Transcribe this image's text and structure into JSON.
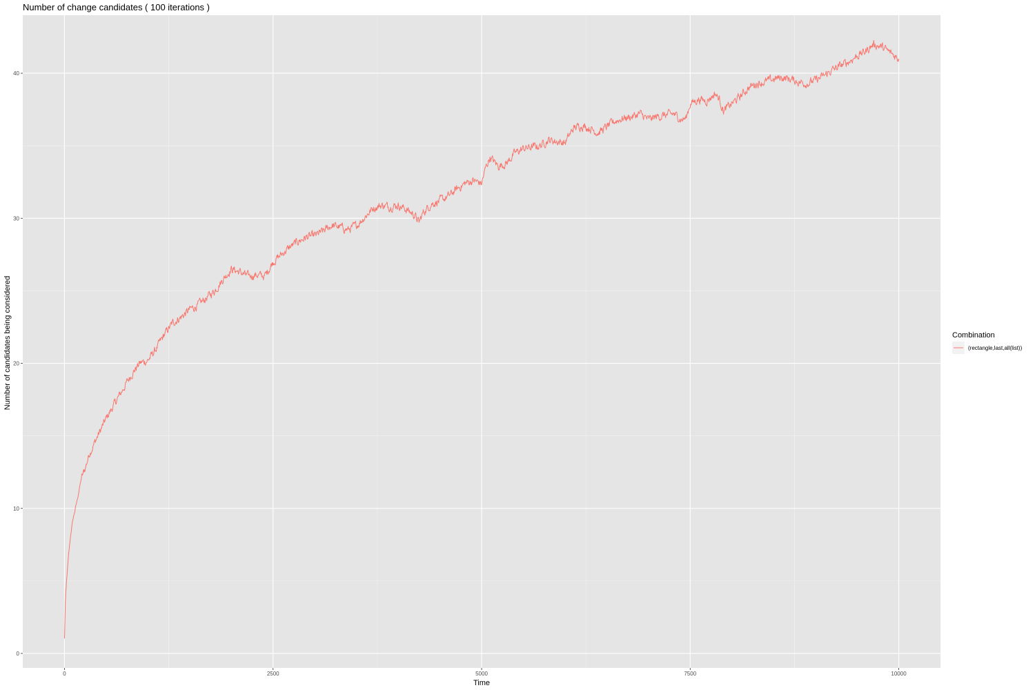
{
  "chart_data": {
    "type": "line",
    "title": "Number of change candidates ( 100 iterations )",
    "xlabel": "Time",
    "ylabel": "Number of candidates being considered",
    "xlim": [
      -500,
      10500
    ],
    "ylim": [
      -1,
      44
    ],
    "x_ticks": [
      0,
      2500,
      5000,
      7500,
      10000
    ],
    "x_tick_labels": [
      "0",
      "2500",
      "5000",
      "7500",
      "10000"
    ],
    "y_ticks": [
      0,
      10,
      20,
      30,
      40
    ],
    "y_tick_labels": [
      "0",
      "10",
      "20",
      "30",
      "40"
    ],
    "grid": true,
    "legend": {
      "title": "Combination",
      "position": "right"
    },
    "series": [
      {
        "name": "(rectangle,last,all(list))",
        "color": "#F8766D",
        "x": [
          0,
          10,
          25,
          50,
          75,
          100,
          150,
          200,
          250,
          300,
          400,
          500,
          600,
          700,
          800,
          900,
          1000,
          1100,
          1200,
          1300,
          1400,
          1500,
          1600,
          1700,
          1800,
          1900,
          2000,
          2100,
          2200,
          2300,
          2400,
          2500,
          2600,
          2700,
          2800,
          2900,
          3000,
          3100,
          3200,
          3300,
          3400,
          3500,
          3600,
          3700,
          3800,
          3900,
          4000,
          4100,
          4200,
          4250,
          4300,
          4400,
          4500,
          4600,
          4700,
          4800,
          4900,
          5000,
          5050,
          5100,
          5200,
          5300,
          5400,
          5500,
          5600,
          5700,
          5800,
          5900,
          6000,
          6100,
          6200,
          6300,
          6400,
          6500,
          6600,
          6700,
          6800,
          6900,
          7000,
          7100,
          7200,
          7300,
          7400,
          7450,
          7500,
          7600,
          7700,
          7800,
          7850,
          7900,
          8000,
          8100,
          8200,
          8300,
          8400,
          8500,
          8600,
          8700,
          8800,
          8900,
          9000,
          9100,
          9200,
          9300,
          9400,
          9500,
          9600,
          9700,
          9800,
          9900,
          10000
        ],
        "y": [
          1,
          3.5,
          5,
          6.8,
          8.2,
          9.2,
          10.5,
          12,
          12.8,
          13.8,
          15,
          16.2,
          17.2,
          18.2,
          19.2,
          20,
          20.2,
          21,
          22,
          22.8,
          23.2,
          23.7,
          24,
          24.5,
          25,
          25.8,
          26.5,
          26.3,
          26,
          26.1,
          26,
          27,
          27.5,
          28,
          28.4,
          28.7,
          28.8,
          29.1,
          29.5,
          29.4,
          29.2,
          29.5,
          30.1,
          30.7,
          30.9,
          30.8,
          30.9,
          30.6,
          30.2,
          29.7,
          30.4,
          31,
          31.2,
          31.5,
          32,
          32.4,
          32.6,
          32.4,
          33.5,
          34.2,
          33.6,
          33.8,
          34.5,
          34.8,
          34.9,
          35,
          35.4,
          35.3,
          35.2,
          36.2,
          36.4,
          36.2,
          35.9,
          36.3,
          36.7,
          36.9,
          37,
          37.2,
          36.8,
          37,
          37.1,
          37.2,
          36.8,
          36.9,
          37.9,
          38.2,
          38.1,
          38.6,
          38.2,
          37.4,
          37.9,
          38.4,
          39,
          39.3,
          39.4,
          39.6,
          39.7,
          39.6,
          39.4,
          39.3,
          39.5,
          39.8,
          40.2,
          40.5,
          40.8,
          41.2,
          41.5,
          42,
          41.8,
          41.4,
          41
        ]
      }
    ]
  }
}
